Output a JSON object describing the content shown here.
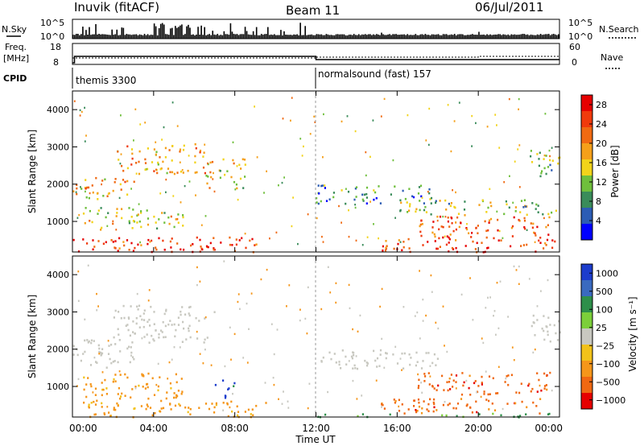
{
  "header": {
    "station": "Inuvik (fitACF)",
    "beam": "Beam 11",
    "date": "06/Jul/2011"
  },
  "panels": {
    "nsky": {
      "label": "N.Sky",
      "tick_top": "10^5",
      "tick_bottom": "10^0",
      "right_label": "N.Search",
      "right_tick_top": "10^5",
      "right_tick_bottom": "10^0"
    },
    "freq": {
      "label_top": "Freq.",
      "label_bottom": "[MHz]",
      "tick_top": "18",
      "tick_bottom": "8",
      "right_label": "Nave",
      "right_tick_top": "60",
      "right_tick_bottom": "0"
    },
    "cpid": {
      "label": "CPID",
      "segments": [
        {
          "name": "themis 3300",
          "start_hour": 0
        },
        {
          "name": "normalsound (fast) 157",
          "start_hour": 12
        }
      ]
    }
  },
  "colors": {
    "power_scale": [
      "#0000ff",
      "#2c5cb4",
      "#3a8c5a",
      "#6fbf3c",
      "#f2d31a",
      "#f5a01a",
      "#f06a12",
      "#f03a0c",
      "#e60000"
    ],
    "velocity_scale": [
      "#1c3ccc",
      "#3a6abf",
      "#2e8f4a",
      "#7ccf3a",
      "#c8c8c0",
      "#f2c21a",
      "#f5961a",
      "#f06812",
      "#e60000"
    ]
  },
  "chart_data": [
    {
      "type": "heatmap",
      "name": "power",
      "xlabel": "Time UT",
      "ylabel": "Slant Range [km]",
      "x_ticks": [
        "00:00",
        "04:00",
        "08:00",
        "12:00",
        "16:00",
        "20:00",
        "00:00"
      ],
      "xlim": [
        0,
        24
      ],
      "ylim": [
        180,
        4500
      ],
      "y_ticks": [
        1000,
        2000,
        3000,
        4000
      ],
      "colorbar": {
        "label": "Power [dB]",
        "ticks": [
          "4",
          "8",
          "12",
          "16",
          "20",
          "24",
          "28"
        ],
        "range": [
          0,
          30
        ]
      },
      "regions": [
        {
          "t0": 0.0,
          "t1": 9.2,
          "r0": 200,
          "r1": 600,
          "value": 26
        },
        {
          "t0": 5.3,
          "t1": 7.0,
          "r0": 200,
          "r1": 450,
          "value": 29
        },
        {
          "t0": 0.0,
          "t1": 3.0,
          "r0": 1600,
          "r1": 2200,
          "value": 18
        },
        {
          "t0": 2.0,
          "t1": 6.5,
          "r0": 2300,
          "r1": 3100,
          "value": 19
        },
        {
          "t0": 0.5,
          "t1": 5.5,
          "r0": 800,
          "r1": 1400,
          "value": 14
        },
        {
          "t0": 6.5,
          "t1": 8.5,
          "r0": 1900,
          "r1": 2700,
          "value": 16
        },
        {
          "t0": 12.0,
          "t1": 18.0,
          "r0": 1500,
          "r1": 2000,
          "value": 7
        },
        {
          "t0": 15.0,
          "t1": 23.8,
          "r0": 200,
          "r1": 600,
          "value": 27
        },
        {
          "t0": 17.0,
          "t1": 23.5,
          "r0": 600,
          "r1": 1200,
          "value": 24
        },
        {
          "t0": 16.0,
          "t1": 23.8,
          "r0": 1200,
          "r1": 1600,
          "value": 12
        },
        {
          "t0": 22.5,
          "t1": 24.0,
          "r0": 2200,
          "r1": 3000,
          "value": 10
        }
      ]
    },
    {
      "type": "heatmap",
      "name": "velocity",
      "xlabel": "Time UT",
      "ylabel": "Slant Range [km]",
      "x_ticks": [
        "00:00",
        "04:00",
        "08:00",
        "12:00",
        "16:00",
        "20:00",
        "00:00"
      ],
      "xlim": [
        0,
        24
      ],
      "ylim": [
        180,
        4500
      ],
      "y_ticks": [
        1000,
        2000,
        3000,
        4000
      ],
      "colorbar": {
        "label": "Velocity [m s⁻¹]",
        "ticks": [
          "1000",
          "500",
          "100",
          "25",
          "−25",
          "−100",
          "−500",
          "−1000"
        ]
      },
      "regions": [
        {
          "t0": 0.0,
          "t1": 9.5,
          "r0": 200,
          "r1": 650,
          "value": -100
        },
        {
          "t0": 0.0,
          "t1": 3.0,
          "r0": 1500,
          "r1": 2300,
          "value": 0
        },
        {
          "t0": 2.0,
          "t1": 7.0,
          "r0": 2200,
          "r1": 3200,
          "value": 0
        },
        {
          "t0": 0.5,
          "t1": 5.5,
          "r0": 700,
          "r1": 1400,
          "value": -100
        },
        {
          "t0": 7.0,
          "t1": 8.0,
          "r0": 700,
          "r1": 1200,
          "value": 1000
        },
        {
          "t0": 12.0,
          "t1": 18.0,
          "r0": 1500,
          "r1": 2000,
          "value": 0
        },
        {
          "t0": 15.0,
          "t1": 23.5,
          "r0": 300,
          "r1": 700,
          "value": -500
        },
        {
          "t0": 17.0,
          "t1": 23.5,
          "r0": 800,
          "r1": 1400,
          "value": -500
        },
        {
          "t0": 12.0,
          "t1": 23.8,
          "r0": 200,
          "r1": 300,
          "value": 100
        },
        {
          "t0": 22.5,
          "t1": 24.0,
          "r0": 2200,
          "r1": 3000,
          "value": 0
        }
      ]
    }
  ]
}
